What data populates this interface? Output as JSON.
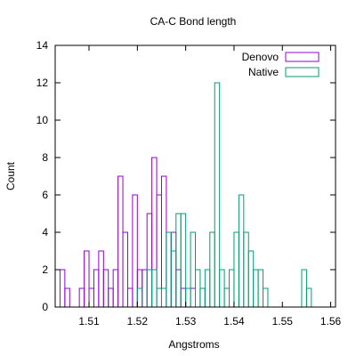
{
  "chart_data": {
    "type": "bar",
    "title": "CA-C Bond length",
    "xlabel": "Angstroms",
    "ylabel": "Count",
    "xlim": [
      1.503,
      1.561
    ],
    "ylim": [
      0,
      14
    ],
    "bin_width": 0.001,
    "xticks": [
      1.51,
      1.52,
      1.53,
      1.54,
      1.55,
      1.56
    ],
    "xtick_labels": [
      "1.51",
      "1.52",
      "1.53",
      "1.54",
      "1.55",
      "1.56"
    ],
    "yticks": [
      0,
      2,
      4,
      6,
      8,
      10,
      12,
      14
    ],
    "ytick_labels": [
      "0",
      "2",
      "4",
      "6",
      "8",
      "10",
      "12",
      "14"
    ],
    "grid": false,
    "legend_position": "top-right",
    "series": [
      {
        "name": "Denovo",
        "color": "#9400d3",
        "bins": [
          [
            1.5045,
            2
          ],
          [
            1.5055,
            1
          ],
          [
            1.5085,
            1
          ],
          [
            1.5095,
            3
          ],
          [
            1.5105,
            1
          ],
          [
            1.5115,
            2
          ],
          [
            1.5125,
            3
          ],
          [
            1.5135,
            2
          ],
          [
            1.5145,
            1
          ],
          [
            1.5155,
            2
          ],
          [
            1.5165,
            7
          ],
          [
            1.5175,
            4
          ],
          [
            1.5185,
            1
          ],
          [
            1.5195,
            6
          ],
          [
            1.5205,
            2
          ],
          [
            1.5215,
            2
          ],
          [
            1.5225,
            5
          ],
          [
            1.5235,
            8
          ],
          [
            1.5245,
            6
          ],
          [
            1.5255,
            7
          ],
          [
            1.5265,
            4
          ],
          [
            1.5275,
            4
          ],
          [
            1.5285,
            2
          ],
          [
            1.5295,
            1
          ],
          [
            1.5315,
            1
          ],
          [
            1.5335,
            1
          ]
        ]
      },
      {
        "name": "Native",
        "color": "#009e73",
        "bins": [
          [
            1.5205,
            1
          ],
          [
            1.5225,
            2
          ],
          [
            1.5235,
            2
          ],
          [
            1.5245,
            1
          ],
          [
            1.5255,
            1
          ],
          [
            1.5265,
            4
          ],
          [
            1.5275,
            3
          ],
          [
            1.5285,
            5
          ],
          [
            1.5295,
            5
          ],
          [
            1.5305,
            1
          ],
          [
            1.5315,
            4
          ],
          [
            1.5325,
            2
          ],
          [
            1.5335,
            1
          ],
          [
            1.5345,
            2
          ],
          [
            1.5355,
            4
          ],
          [
            1.5365,
            12
          ],
          [
            1.5375,
            2
          ],
          [
            1.5385,
            1
          ],
          [
            1.5395,
            2
          ],
          [
            1.5405,
            4
          ],
          [
            1.5415,
            6
          ],
          [
            1.5425,
            4
          ],
          [
            1.5435,
            3
          ],
          [
            1.5445,
            2
          ],
          [
            1.5455,
            2
          ],
          [
            1.5465,
            1
          ],
          [
            1.5545,
            2
          ],
          [
            1.5555,
            1
          ]
        ]
      }
    ]
  }
}
